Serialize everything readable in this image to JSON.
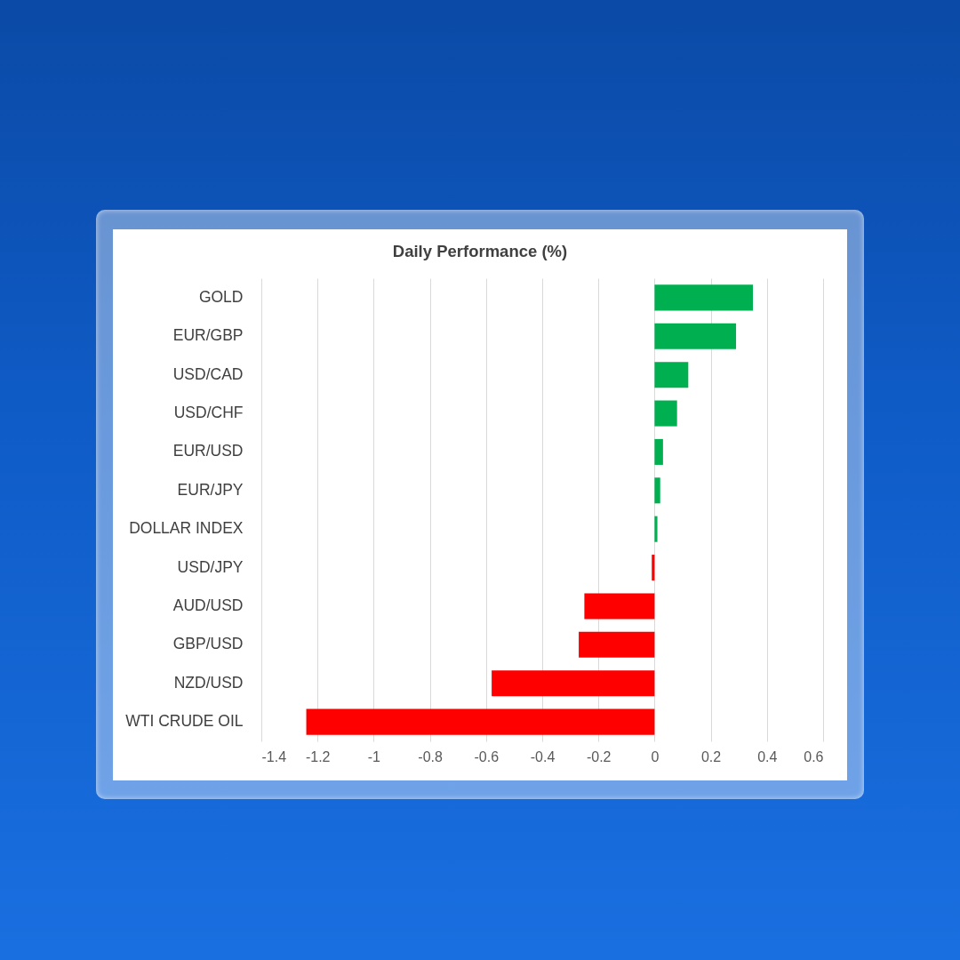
{
  "chart_data": {
    "type": "bar",
    "orientation": "horizontal",
    "title": "Daily Performance (%)",
    "categories": [
      "GOLD",
      "EUR/GBP",
      "USD/CAD",
      "USD/CHF",
      "EUR/USD",
      "EUR/JPY",
      "DOLLAR INDEX",
      "USD/JPY",
      "AUD/USD",
      "GBP/USD",
      "NZD/USD",
      "WTI CRUDE OIL"
    ],
    "values": [
      0.35,
      0.29,
      0.12,
      0.08,
      0.03,
      0.02,
      0.01,
      -0.01,
      -0.25,
      -0.27,
      -0.58,
      -1.24
    ],
    "colors": [
      "#00b050",
      "#00b050",
      "#00b050",
      "#00b050",
      "#00b050",
      "#00b050",
      "#00b050",
      "#ff0000",
      "#ff0000",
      "#ff0000",
      "#ff0000",
      "#ff0000"
    ],
    "xlim": [
      -1.4,
      0.6
    ],
    "xticks": [
      -1.4,
      -1.2,
      -1,
      -0.8,
      -0.6,
      -0.4,
      -0.2,
      0,
      0.2,
      0.4,
      0.6
    ],
    "grid": "x"
  }
}
